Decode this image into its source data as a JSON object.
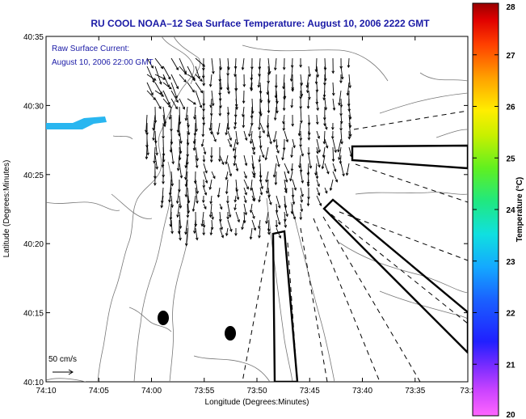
{
  "title": "RU COOL  NOAA–12  Sea Surface Temperature:  August 10, 2006 2222 GMT",
  "annotation": {
    "line1": "Raw Surface Current:",
    "line2": "August 10, 2006 22:00 GMT"
  },
  "scale_label": "50 cm/s",
  "x_axis": {
    "label": "Longitude (Degrees:Minutes)",
    "ticks": [
      "74:10",
      "74:05",
      "74:00",
      "73:55",
      "73:50",
      "73:45",
      "73:40",
      "73:35",
      "73:3"
    ]
  },
  "y_axis": {
    "label": "Latitude (Degrees:Minutes)",
    "ticks": [
      "40:35",
      "40:30",
      "40:25",
      "40:20",
      "40:15",
      "40:10"
    ]
  },
  "colorbar": {
    "label": "Temperature (°C)",
    "ticks": [
      "28",
      "27",
      "26",
      "25",
      "24",
      "23",
      "22",
      "21",
      "20"
    ],
    "range": [
      20,
      28
    ]
  },
  "colors": {
    "title": "#1a1aa6",
    "land_contour": "#777777",
    "sst_patch": "#29b6f0",
    "arrows": "#000000"
  }
}
